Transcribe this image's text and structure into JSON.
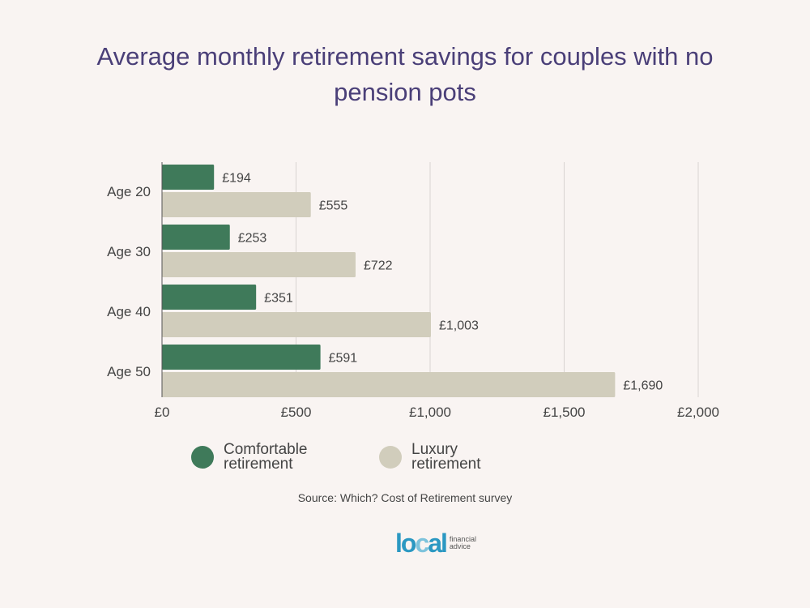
{
  "chart_data": {
    "type": "bar",
    "orientation": "horizontal",
    "title": "Average monthly retirement savings for couples with no pension pots",
    "categories": [
      "Age 20",
      "Age 30",
      "Age 40",
      "Age 50"
    ],
    "series": [
      {
        "name": "Comfortable retirement",
        "values": [
          194,
          253,
          351,
          591
        ],
        "labels": [
          "£194",
          "£253",
          "£351",
          "£591"
        ],
        "color": "#3f7a5a"
      },
      {
        "name": "Luxury retirement",
        "values": [
          555,
          722,
          1003,
          1690
        ],
        "labels": [
          "£555",
          "£722",
          "£1,003",
          "£1,690"
        ],
        "color": "#d1cdbc"
      }
    ],
    "xlim": [
      0,
      2000
    ],
    "xticks": [
      0,
      500,
      1000,
      1500,
      2000
    ],
    "xtick_labels": [
      "£0",
      "£500",
      "£1,000",
      "£1,500",
      "£2,000"
    ],
    "grid": true,
    "legend_position": "bottom-left"
  },
  "legend": {
    "comfortable": {
      "line1": "Comfortable",
      "line2": "retirement"
    },
    "luxury": {
      "line1": "Luxury",
      "line2": "retirement"
    }
  },
  "source": "Source: Which? Cost of Retirement survey",
  "logo": {
    "word_part1": "lo",
    "word_part2": "c",
    "word_part3": "al",
    "tagline1": "financial",
    "tagline2": "advice",
    "color_main": "#2b98c2",
    "color_accent": "#7dc3dc"
  },
  "colors": {
    "title": "#4a3f78",
    "background": "#f9f4f2",
    "grid": "#d9d4d1",
    "text": "#444444"
  }
}
